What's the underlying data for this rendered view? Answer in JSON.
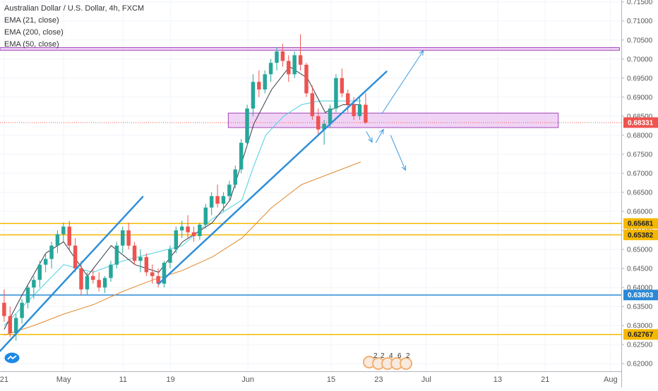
{
  "header": {
    "symbol_title": "Australian Dollar / U.S. Dollar, 4h, FXCM",
    "indicators": [
      "EMA (21, close)",
      "EMA (200, close)",
      "EMA (50, close)"
    ]
  },
  "events": {
    "counts": [
      "2",
      "2",
      "4",
      "6",
      "2"
    ],
    "badge_color": "#f0b070"
  },
  "colors": {
    "up_candle": "#26a69a",
    "down_candle": "#ef5350",
    "ema21": "#363a45",
    "ema50": "#4dd0e1",
    "ema200": "#e08a2e",
    "trendline": "#2e8fd8",
    "zone_fill": "#e8b7ef",
    "zone_border": "#a347b8",
    "level_orange": "#f5b800",
    "level_blue": "#2a89d6",
    "price_badge": "#ef5350"
  },
  "chart_data": {
    "type": "candlestick",
    "title": "Australian Dollar / U.S. Dollar, 4h, FXCM",
    "ylim": [
      0.618,
      0.7155
    ],
    "y_ticks": [
      "0.71500",
      "0.71000",
      "0.70500",
      "0.70000",
      "0.69500",
      "0.69000",
      "0.68500",
      "0.68000",
      "0.67500",
      "0.67000",
      "0.66500",
      "0.66000",
      "0.65500",
      "0.65000",
      "0.64500",
      "0.64000",
      "0.63500",
      "0.63000",
      "0.62500",
      "0.62000"
    ],
    "x_ticks": [
      {
        "label": "21",
        "day": 0
      },
      {
        "label": "May",
        "day": 10
      },
      {
        "label": "11",
        "day": 20
      },
      {
        "label": "19",
        "day": 28
      },
      {
        "label": "Jun",
        "day": 41
      },
      {
        "label": "15",
        "day": 55
      },
      {
        "label": "23",
        "day": 63
      },
      {
        "label": "Jul",
        "day": 71
      },
      {
        "label": "13",
        "day": 83
      },
      {
        "label": "21",
        "day": 91
      },
      {
        "label": "Aug",
        "day": 102
      }
    ],
    "day_range": [
      -0.7,
      103.8
    ],
    "x_unit": "days since Apr 21",
    "price_levels": [
      {
        "label": "0.65681",
        "value": 0.65681,
        "color": "#f5b800"
      },
      {
        "label": "0.65382",
        "value": 0.65382,
        "color": "#f5b800"
      },
      {
        "label": "0.63803",
        "value": 0.63803,
        "color": "#2a89d6"
      },
      {
        "label": "0.62767",
        "value": 0.62767,
        "color": "#f5b800"
      }
    ],
    "current_price": {
      "label": "0.68331",
      "value": 0.68331
    },
    "zones": [
      {
        "day_start": -0.7,
        "day_end": 103.5,
        "low": 0.7023,
        "high": 0.703
      },
      {
        "day_start": 37.7,
        "day_end": 93.2,
        "low": 0.682,
        "high": 0.6858
      }
    ],
    "trendlines": [
      {
        "from": [
          -0.7,
          0.6233
        ],
        "to": [
          23.3,
          0.6638
        ]
      },
      {
        "from": [
          26,
          0.641
        ],
        "to": [
          64.3,
          0.6967
        ]
      }
    ],
    "arrows": [
      {
        "from": [
          63.5,
          0.6856
        ],
        "to": [
          70.5,
          0.7022
        ]
      },
      {
        "from": [
          60.9,
          0.681
        ],
        "to": [
          61.9,
          0.6782
        ]
      },
      {
        "from": [
          62.5,
          0.678
        ],
        "to": [
          63.8,
          0.6815
        ]
      },
      {
        "from": [
          65,
          0.68
        ],
        "to": [
          67.5,
          0.6708
        ]
      }
    ],
    "ema200": [
      [
        0,
        0.6275
      ],
      [
        5,
        0.63
      ],
      [
        10,
        0.633
      ],
      [
        15,
        0.6355
      ],
      [
        20,
        0.639
      ],
      [
        25,
        0.642
      ],
      [
        30,
        0.6445
      ],
      [
        35,
        0.648
      ],
      [
        40,
        0.653
      ],
      [
        45,
        0.661
      ],
      [
        50,
        0.667
      ],
      [
        55,
        0.67
      ],
      [
        60,
        0.673
      ]
    ],
    "ema50": [
      [
        0,
        0.63
      ],
      [
        5,
        0.638
      ],
      [
        10,
        0.646
      ],
      [
        15,
        0.644
      ],
      [
        20,
        0.647
      ],
      [
        25,
        0.649
      ],
      [
        30,
        0.651
      ],
      [
        35,
        0.658
      ],
      [
        40,
        0.663
      ],
      [
        42,
        0.672
      ],
      [
        44,
        0.68
      ],
      [
        47,
        0.685
      ],
      [
        50,
        0.688
      ],
      [
        53,
        0.689
      ],
      [
        56,
        0.689
      ],
      [
        60,
        0.689
      ]
    ],
    "ema21": [
      [
        0,
        0.629
      ],
      [
        3,
        0.638
      ],
      [
        7,
        0.649
      ],
      [
        10,
        0.652
      ],
      [
        14,
        0.643
      ],
      [
        18,
        0.651
      ],
      [
        22,
        0.646
      ],
      [
        26,
        0.644
      ],
      [
        30,
        0.652
      ],
      [
        35,
        0.657
      ],
      [
        38,
        0.663
      ],
      [
        42,
        0.683
      ],
      [
        45,
        0.692
      ],
      [
        48,
        0.698
      ],
      [
        51,
        0.695
      ],
      [
        54,
        0.686
      ],
      [
        57,
        0.688
      ],
      [
        60,
        0.688
      ]
    ],
    "candles": [
      {
        "o": 0.636,
        "h": 0.6395,
        "l": 0.631,
        "c": 0.6325
      },
      {
        "o": 0.6325,
        "h": 0.635,
        "l": 0.627,
        "c": 0.628
      },
      {
        "o": 0.628,
        "h": 0.633,
        "l": 0.626,
        "c": 0.632
      },
      {
        "o": 0.632,
        "h": 0.637,
        "l": 0.6305,
        "c": 0.636
      },
      {
        "o": 0.636,
        "h": 0.641,
        "l": 0.6345,
        "c": 0.64
      },
      {
        "o": 0.64,
        "h": 0.643,
        "l": 0.637,
        "c": 0.642
      },
      {
        "o": 0.642,
        "h": 0.647,
        "l": 0.64,
        "c": 0.646
      },
      {
        "o": 0.646,
        "h": 0.649,
        "l": 0.644,
        "c": 0.6475
      },
      {
        "o": 0.6475,
        "h": 0.652,
        "l": 0.645,
        "c": 0.651
      },
      {
        "o": 0.651,
        "h": 0.655,
        "l": 0.649,
        "c": 0.654
      },
      {
        "o": 0.654,
        "h": 0.657,
        "l": 0.652,
        "c": 0.656
      },
      {
        "o": 0.656,
        "h": 0.6575,
        "l": 0.65,
        "c": 0.651
      },
      {
        "o": 0.651,
        "h": 0.653,
        "l": 0.644,
        "c": 0.645
      },
      {
        "o": 0.645,
        "h": 0.647,
        "l": 0.638,
        "c": 0.6395
      },
      {
        "o": 0.6395,
        "h": 0.644,
        "l": 0.638,
        "c": 0.643
      },
      {
        "o": 0.643,
        "h": 0.645,
        "l": 0.641,
        "c": 0.642
      },
      {
        "o": 0.642,
        "h": 0.644,
        "l": 0.639,
        "c": 0.64
      },
      {
        "o": 0.64,
        "h": 0.643,
        "l": 0.6385,
        "c": 0.6425
      },
      {
        "o": 0.6425,
        "h": 0.647,
        "l": 0.6415,
        "c": 0.646
      },
      {
        "o": 0.646,
        "h": 0.652,
        "l": 0.645,
        "c": 0.651
      },
      {
        "o": 0.651,
        "h": 0.656,
        "l": 0.649,
        "c": 0.655
      },
      {
        "o": 0.655,
        "h": 0.657,
        "l": 0.65,
        "c": 0.651
      },
      {
        "o": 0.651,
        "h": 0.652,
        "l": 0.646,
        "c": 0.647
      },
      {
        "o": 0.647,
        "h": 0.65,
        "l": 0.644,
        "c": 0.648
      },
      {
        "o": 0.648,
        "h": 0.649,
        "l": 0.643,
        "c": 0.644
      },
      {
        "o": 0.644,
        "h": 0.646,
        "l": 0.641,
        "c": 0.643
      },
      {
        "o": 0.643,
        "h": 0.645,
        "l": 0.64,
        "c": 0.641
      },
      {
        "o": 0.641,
        "h": 0.647,
        "l": 0.64,
        "c": 0.6465
      },
      {
        "o": 0.6465,
        "h": 0.651,
        "l": 0.645,
        "c": 0.65
      },
      {
        "o": 0.65,
        "h": 0.656,
        "l": 0.649,
        "c": 0.655
      },
      {
        "o": 0.655,
        "h": 0.6575,
        "l": 0.653,
        "c": 0.656
      },
      {
        "o": 0.656,
        "h": 0.659,
        "l": 0.653,
        "c": 0.6545
      },
      {
        "o": 0.6545,
        "h": 0.656,
        "l": 0.652,
        "c": 0.6535
      },
      {
        "o": 0.6535,
        "h": 0.657,
        "l": 0.6525,
        "c": 0.6565
      },
      {
        "o": 0.6565,
        "h": 0.662,
        "l": 0.6555,
        "c": 0.661
      },
      {
        "o": 0.661,
        "h": 0.665,
        "l": 0.659,
        "c": 0.664
      },
      {
        "o": 0.664,
        "h": 0.667,
        "l": 0.661,
        "c": 0.662
      },
      {
        "o": 0.662,
        "h": 0.665,
        "l": 0.66,
        "c": 0.664
      },
      {
        "o": 0.664,
        "h": 0.668,
        "l": 0.6625,
        "c": 0.667
      },
      {
        "o": 0.667,
        "h": 0.672,
        "l": 0.666,
        "c": 0.671
      },
      {
        "o": 0.671,
        "h": 0.679,
        "l": 0.67,
        "c": 0.678
      },
      {
        "o": 0.678,
        "h": 0.688,
        "l": 0.677,
        "c": 0.687
      },
      {
        "o": 0.687,
        "h": 0.696,
        "l": 0.685,
        "c": 0.694
      },
      {
        "o": 0.694,
        "h": 0.697,
        "l": 0.69,
        "c": 0.692
      },
      {
        "o": 0.692,
        "h": 0.697,
        "l": 0.691,
        "c": 0.696
      },
      {
        "o": 0.696,
        "h": 0.7,
        "l": 0.694,
        "c": 0.699
      },
      {
        "o": 0.699,
        "h": 0.703,
        "l": 0.697,
        "c": 0.702
      },
      {
        "o": 0.702,
        "h": 0.704,
        "l": 0.698,
        "c": 0.6995
      },
      {
        "o": 0.6995,
        "h": 0.701,
        "l": 0.694,
        "c": 0.696
      },
      {
        "o": 0.696,
        "h": 0.702,
        "l": 0.695,
        "c": 0.701
      },
      {
        "o": 0.701,
        "h": 0.7065,
        "l": 0.697,
        "c": 0.6985
      },
      {
        "o": 0.6985,
        "h": 0.699,
        "l": 0.69,
        "c": 0.691
      },
      {
        "o": 0.691,
        "h": 0.693,
        "l": 0.684,
        "c": 0.685
      },
      {
        "o": 0.685,
        "h": 0.687,
        "l": 0.68,
        "c": 0.6815
      },
      {
        "o": 0.6815,
        "h": 0.684,
        "l": 0.6775,
        "c": 0.683
      },
      {
        "o": 0.683,
        "h": 0.688,
        "l": 0.682,
        "c": 0.687
      },
      {
        "o": 0.687,
        "h": 0.696,
        "l": 0.686,
        "c": 0.695
      },
      {
        "o": 0.695,
        "h": 0.6975,
        "l": 0.69,
        "c": 0.691
      },
      {
        "o": 0.691,
        "h": 0.692,
        "l": 0.686,
        "c": 0.688
      },
      {
        "o": 0.688,
        "h": 0.69,
        "l": 0.684,
        "c": 0.685
      },
      {
        "o": 0.685,
        "h": 0.69,
        "l": 0.684,
        "c": 0.688
      },
      {
        "o": 0.688,
        "h": 0.691,
        "l": 0.683,
        "c": 0.6833
      }
    ]
  }
}
